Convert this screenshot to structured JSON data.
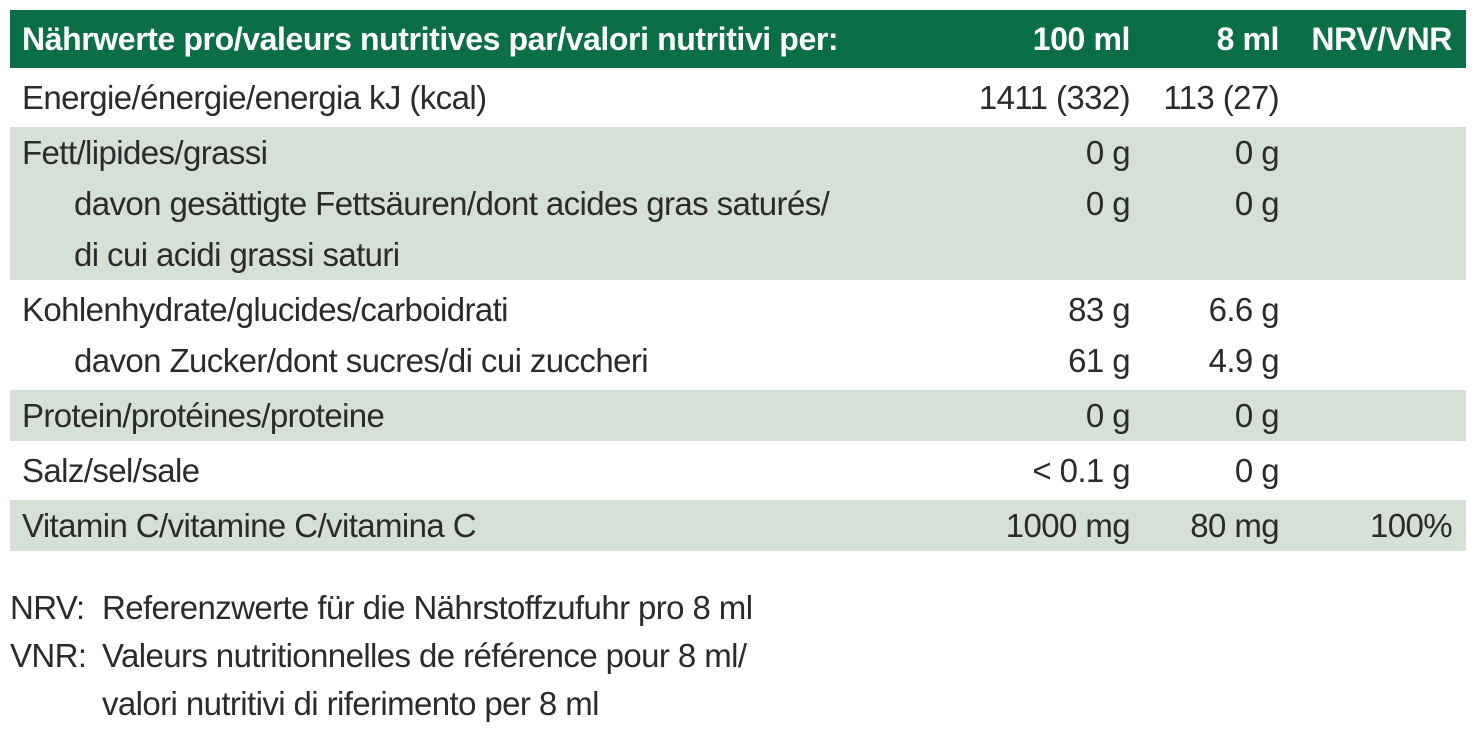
{
  "header": {
    "title": "Nährwerte pro/valeurs nutritives par/valori nutritivi per:",
    "col_100ml": "100 ml",
    "col_8ml": "8 ml",
    "col_nrv": "NRV/VNR"
  },
  "rows": [
    {
      "shaded": false,
      "lines": [
        {
          "label": "Energie/énergie/energia kJ (kcal)",
          "v100": "1411 (332)",
          "v8": "113 (27)",
          "nrv": ""
        }
      ]
    },
    {
      "shaded": true,
      "lines": [
        {
          "label": "Fett/lipides/grassi",
          "v100": "0 g",
          "v8": "0 g",
          "nrv": ""
        },
        {
          "label": "davon gesättigte Fettsäuren/dont acides gras saturés/",
          "v100": "0 g",
          "v8": "0 g",
          "nrv": ""
        },
        {
          "label": "di cui acidi grassi saturi",
          "v100": "",
          "v8": "",
          "nrv": ""
        }
      ]
    },
    {
      "shaded": false,
      "lines": [
        {
          "label": "Kohlenhydrate/glucides/carboidrati",
          "v100": "83 g",
          "v8": "6.6 g",
          "nrv": ""
        },
        {
          "label": "davon Zucker/dont sucres/di cui zuccheri",
          "v100": "61 g",
          "v8": "4.9 g",
          "nrv": ""
        }
      ]
    },
    {
      "shaded": true,
      "lines": [
        {
          "label": "Protein/protéines/proteine",
          "v100": "0 g",
          "v8": "0 g",
          "nrv": ""
        }
      ]
    },
    {
      "shaded": false,
      "lines": [
        {
          "label": "Salz/sel/sale",
          "v100": "< 0.1 g",
          "v8": "0 g",
          "nrv": ""
        }
      ]
    },
    {
      "shaded": true,
      "lines": [
        {
          "label": "Vitamin C/vitamine C/vitamina C",
          "v100": "1000 mg",
          "v8": "80 mg",
          "nrv": "100%"
        }
      ]
    }
  ],
  "footnotes": [
    {
      "key": "NRV:",
      "text": "Referenzwerte für die Nährstoffzufuhr pro 8 ml"
    },
    {
      "key": "VNR:",
      "text": "Valeurs nutritionnelles de référence pour 8 ml/"
    },
    {
      "key": "",
      "text": "valori nutritivi di riferimento per 8 ml"
    }
  ],
  "colors": {
    "header_bg": "#0a6e46",
    "shaded_bg": "#d5e0d6",
    "text": "#2b2b2b"
  }
}
